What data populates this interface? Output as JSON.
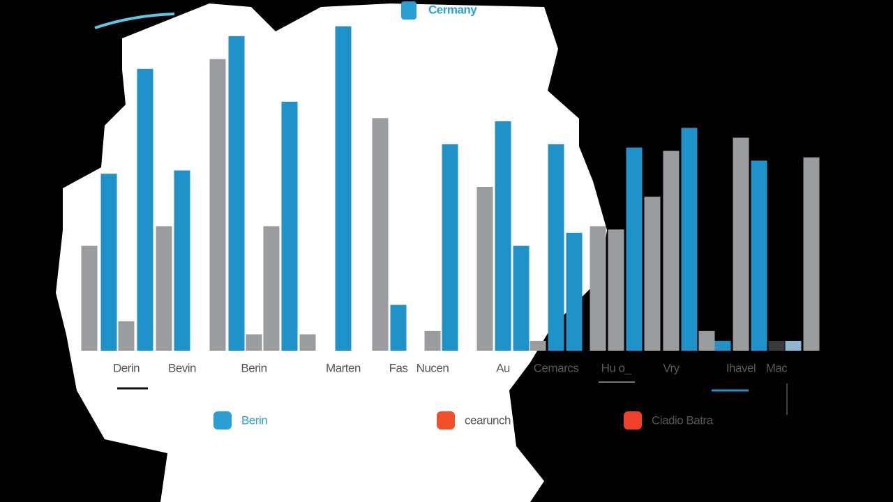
{
  "chart_data": {
    "type": "bar",
    "title": "Cermany",
    "title_color": "#2a9fd6",
    "categories": [
      null,
      null,
      "Derin",
      null,
      null,
      "Bevin",
      null,
      null,
      "Berin",
      null,
      null,
      null,
      "Marten",
      null,
      "Fas",
      "Nucen",
      null,
      null,
      "Au",
      null,
      null,
      "Cemarcs",
      null,
      null,
      "Hu o_",
      null,
      null,
      "Vry",
      null,
      null,
      null,
      "Ihavel",
      null,
      "Mac",
      null,
      null
    ],
    "values": [
      32,
      54,
      9,
      86,
      38,
      55,
      89,
      96,
      5,
      38,
      76,
      5,
      99,
      71,
      14,
      6,
      63,
      50,
      70,
      32,
      3,
      63,
      36,
      38,
      37,
      62,
      47,
      61,
      68,
      6,
      3,
      65,
      58,
      3,
      3,
      59
    ],
    "colors": [
      "#9a9ca0",
      "#1f93c9",
      "#9a9ca0",
      "#1f93c9",
      "#9a9ca0",
      "#1f93c9",
      "#9a9ca0",
      "#1f93c9",
      "#9a9ca0",
      "#9a9ca0",
      "#1f93c9",
      "#9a9ca0",
      "#1f93c9",
      "#9a9ca0",
      "#1f93c9",
      "#9a9ca0",
      "#1f93c9",
      "#9a9ca0",
      "#1f93c9",
      "#1f93c9",
      "#9a9ca0",
      "#1f93c9",
      "#1f93c9",
      "#9a9ca0",
      "#9a9ca0",
      "#1f93c9",
      "#9a9ca0",
      "#9a9ca0",
      "#1f93c9",
      "#9a9ca0",
      "#1f93c9",
      "#9a9ca0",
      "#1f93c9",
      "#3a3a3a",
      "#8fb7d0",
      "#9a9ca0"
    ],
    "ylim": [
      0,
      100
    ],
    "legend": [
      {
        "name": "Berin",
        "color": "#2a9fd6"
      },
      {
        "name": "cearunch",
        "color": "#f0502a"
      },
      {
        "name": "Ciadio Batra",
        "color": "#f0402a"
      }
    ]
  }
}
